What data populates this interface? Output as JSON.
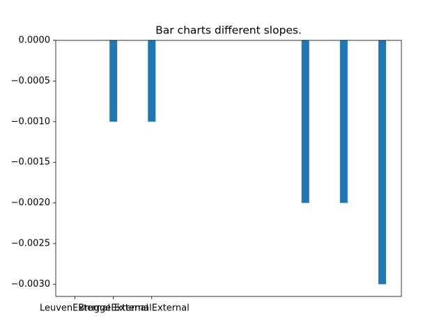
{
  "chart_data": {
    "type": "bar",
    "title": "Bar charts different slopes.",
    "categories": [
      "LeuvenExternal",
      "BruggeExternal",
      "ExternalExternal",
      null,
      null,
      null,
      null,
      null,
      null
    ],
    "values": [
      null,
      -0.001,
      -0.001,
      null,
      null,
      null,
      -0.002,
      -0.002,
      -0.003
    ],
    "color": "#1f77b4",
    "xlim": [
      -0.5,
      8.5
    ],
    "ylim": [
      -0.00315,
      0
    ],
    "yticks": [
      {
        "value": 0,
        "label": "0.0000"
      },
      {
        "value": -0.0005,
        "label": "−0.0005"
      },
      {
        "value": -0.001,
        "label": "−0.0010"
      },
      {
        "value": -0.0015,
        "label": "−0.0015"
      },
      {
        "value": -0.002,
        "label": "−0.0020"
      },
      {
        "value": -0.0025,
        "label": "−0.0025"
      },
      {
        "value": -0.003,
        "label": "−0.0030"
      }
    ],
    "grid": false
  }
}
